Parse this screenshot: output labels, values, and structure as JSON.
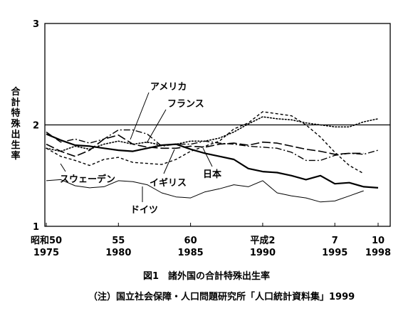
{
  "chart_data": {
    "type": "line",
    "ylabel": "合計特殊出生率",
    "ylim": [
      1,
      3
    ],
    "yticks": [
      "1",
      "2",
      "3"
    ],
    "xlim": [
      1975,
      1999
    ],
    "xticks": [
      {
        "x": 1975,
        "era": "昭和50",
        "year": "1975"
      },
      {
        "x": 1980,
        "era": "55",
        "year": "1980"
      },
      {
        "x": 1985,
        "era": "60",
        "year": "1985"
      },
      {
        "x": 1990,
        "era": "平成2",
        "year": "1990"
      },
      {
        "x": 1995,
        "era": "7",
        "year": "1995"
      },
      {
        "x": 1998,
        "era": "10",
        "year": "1998"
      }
    ],
    "reference_line": 2.0,
    "series": [
      {
        "name": "日本",
        "style": "solid",
        "width": 2.2,
        "x": [
          1975,
          1976,
          1977,
          1978,
          1979,
          1980,
          1981,
          1982,
          1983,
          1984,
          1985,
          1986,
          1987,
          1988,
          1989,
          1990,
          1991,
          1992,
          1993,
          1994,
          1995,
          1996,
          1997,
          1998
        ],
        "y": [
          1.91,
          1.85,
          1.8,
          1.79,
          1.77,
          1.75,
          1.74,
          1.77,
          1.8,
          1.81,
          1.76,
          1.72,
          1.69,
          1.66,
          1.57,
          1.54,
          1.53,
          1.5,
          1.46,
          1.5,
          1.42,
          1.43,
          1.39,
          1.38
        ]
      },
      {
        "name": "アメリカ",
        "style": "dotted",
        "width": 1.6,
        "x": [
          1975,
          1976,
          1977,
          1978,
          1979,
          1980,
          1981,
          1982,
          1983,
          1984,
          1985,
          1986,
          1987,
          1988,
          1989,
          1990,
          1991,
          1992,
          1993,
          1994,
          1995,
          1996,
          1997,
          1998
        ],
        "y": [
          1.77,
          1.74,
          1.79,
          1.76,
          1.81,
          1.84,
          1.81,
          1.83,
          1.8,
          1.81,
          1.84,
          1.84,
          1.87,
          1.93,
          2.01,
          2.08,
          2.06,
          2.05,
          2.02,
          2.0,
          1.98,
          1.98,
          2.03,
          2.06
        ]
      },
      {
        "name": "フランス",
        "style": "dashdot",
        "width": 1.4,
        "x": [
          1975,
          1976,
          1977,
          1978,
          1979,
          1980,
          1981,
          1982,
          1983,
          1984,
          1985,
          1986,
          1987,
          1988,
          1989,
          1990,
          1991,
          1992,
          1993,
          1994,
          1995,
          1996,
          1997,
          1998
        ],
        "y": [
          1.93,
          1.83,
          1.86,
          1.82,
          1.86,
          1.95,
          1.95,
          1.91,
          1.79,
          1.81,
          1.81,
          1.84,
          1.82,
          1.81,
          1.79,
          1.78,
          1.77,
          1.73,
          1.65,
          1.65,
          1.7,
          1.72,
          1.71,
          1.75
        ]
      },
      {
        "name": "スウェーデン",
        "style": "dashed",
        "width": 1.4,
        "x": [
          1975,
          1976,
          1977,
          1978,
          1979,
          1980,
          1981,
          1982,
          1983,
          1984,
          1985,
          1986,
          1987,
          1988,
          1989,
          1990,
          1991,
          1992,
          1993,
          1994,
          1995,
          1996,
          1997
        ],
        "y": [
          1.77,
          1.69,
          1.65,
          1.6,
          1.66,
          1.68,
          1.63,
          1.62,
          1.61,
          1.66,
          1.74,
          1.79,
          1.84,
          1.96,
          2.02,
          2.13,
          2.11,
          2.09,
          2.0,
          1.88,
          1.73,
          1.6,
          1.52
        ]
      },
      {
        "name": "イギリス",
        "style": "longdash",
        "width": 1.6,
        "x": [
          1975,
          1976,
          1977,
          1978,
          1979,
          1980,
          1981,
          1982,
          1983,
          1984,
          1985,
          1986,
          1987,
          1988,
          1989,
          1990,
          1991,
          1992,
          1993,
          1994,
          1995,
          1996,
          1997
        ],
        "y": [
          1.81,
          1.74,
          1.69,
          1.75,
          1.86,
          1.9,
          1.81,
          1.78,
          1.77,
          1.77,
          1.79,
          1.78,
          1.81,
          1.82,
          1.8,
          1.83,
          1.82,
          1.79,
          1.76,
          1.74,
          1.71,
          1.72,
          1.72
        ]
      },
      {
        "name": "ドイツ",
        "style": "solid",
        "width": 1.0,
        "x": [
          1975,
          1976,
          1977,
          1978,
          1979,
          1980,
          1981,
          1982,
          1983,
          1984,
          1985,
          1986,
          1987,
          1988,
          1989,
          1990,
          1991,
          1992,
          1993,
          1994,
          1995,
          1996,
          1997
        ],
        "y": [
          1.45,
          1.46,
          1.4,
          1.38,
          1.39,
          1.45,
          1.44,
          1.41,
          1.33,
          1.29,
          1.28,
          1.34,
          1.37,
          1.41,
          1.39,
          1.45,
          1.33,
          1.3,
          1.28,
          1.24,
          1.25,
          1.3,
          1.35
        ]
      }
    ],
    "labels": [
      {
        "text": "アメリカ",
        "series": "アメリカ"
      },
      {
        "text": "フランス",
        "series": "フランス"
      },
      {
        "text": "スウェーデン",
        "series": "スウェーデン"
      },
      {
        "text": "イギリス",
        "series": "イギリス"
      },
      {
        "text": "日本",
        "series": "日本"
      },
      {
        "text": "ドイツ",
        "series": "ドイツ"
      }
    ]
  },
  "figure": {
    "caption": "図1　諸外国の合計特殊出生率",
    "source": "（注）国立社会保障・人口問題研究所「人口統計資料集」1999"
  }
}
